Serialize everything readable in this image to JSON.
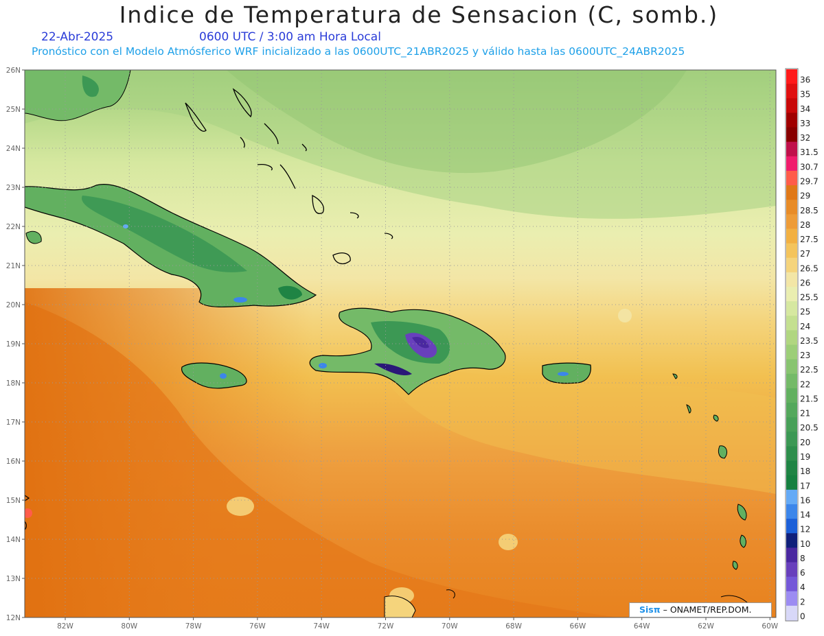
{
  "header": {
    "title": "Indice de Temperatura de Sensacion (C, somb.)",
    "date": "22-Abr-2025",
    "time": "0600 UTC / 3:00 am Hora Local",
    "subtitle": "Pronóstico con el Modelo Atmósferico WRF inicializado a las 0600UTC_21ABR2025 y válido hasta las  0600UTC_24ABR2025"
  },
  "map": {
    "lat_labels": [
      "26N",
      "25N",
      "24N",
      "23N",
      "22N",
      "21N",
      "20N",
      "19N",
      "18N",
      "17N",
      "16N",
      "15N",
      "14N",
      "13N",
      "12N"
    ],
    "lon_labels": [
      "82W",
      "80W",
      "78W",
      "76W",
      "74W",
      "72W",
      "70W",
      "68W",
      "66W",
      "64W",
      "62W",
      "60W"
    ],
    "grid": true,
    "colors": {
      "warm": "#e8781a",
      "mid": "#f2c050",
      "cool": "#e8eeb0",
      "green": "#3c9c4c",
      "cold": "#7060c8"
    }
  },
  "legend": {
    "labels": [
      "36",
      "35",
      "34",
      "33",
      "32",
      "31.5",
      "30.7",
      "29.7",
      "29",
      "28.5",
      "28",
      "27.5",
      "27",
      "26.5",
      "26",
      "25.5",
      "25",
      "24",
      "23.5",
      "23",
      "22.5",
      "22",
      "21.5",
      "21",
      "20.5",
      "20",
      "19",
      "18",
      "17",
      "16",
      "14",
      "12",
      "10",
      "8",
      "6",
      "4",
      "2",
      "0"
    ],
    "colors": [
      "#ff1a1a",
      "#e01010",
      "#c80808",
      "#a00000",
      "#880000",
      "#c0104a",
      "#f01c6c",
      "#ff5c4a",
      "#e07818",
      "#e88c28",
      "#ee9c38",
      "#f2b042",
      "#f4c45c",
      "#f5d47c",
      "#f3e6a6",
      "#eaeeb0",
      "#d6e8a0",
      "#c4e090",
      "#b0d680",
      "#9cce78",
      "#88c470",
      "#74ba68",
      "#62b060",
      "#54a85c",
      "#48a058",
      "#3c9854",
      "#2e8e4c",
      "#1f8444",
      "#168040",
      "#64aaf6",
      "#3c86ea",
      "#1c60d8",
      "#10207a",
      "#4a28a0",
      "#6840bc",
      "#7458d8",
      "#9c8cf2",
      "#d8d8f8"
    ]
  },
  "credit": {
    "logo": "Sisπ",
    "text": " – ONAMET/REP.DOM."
  }
}
